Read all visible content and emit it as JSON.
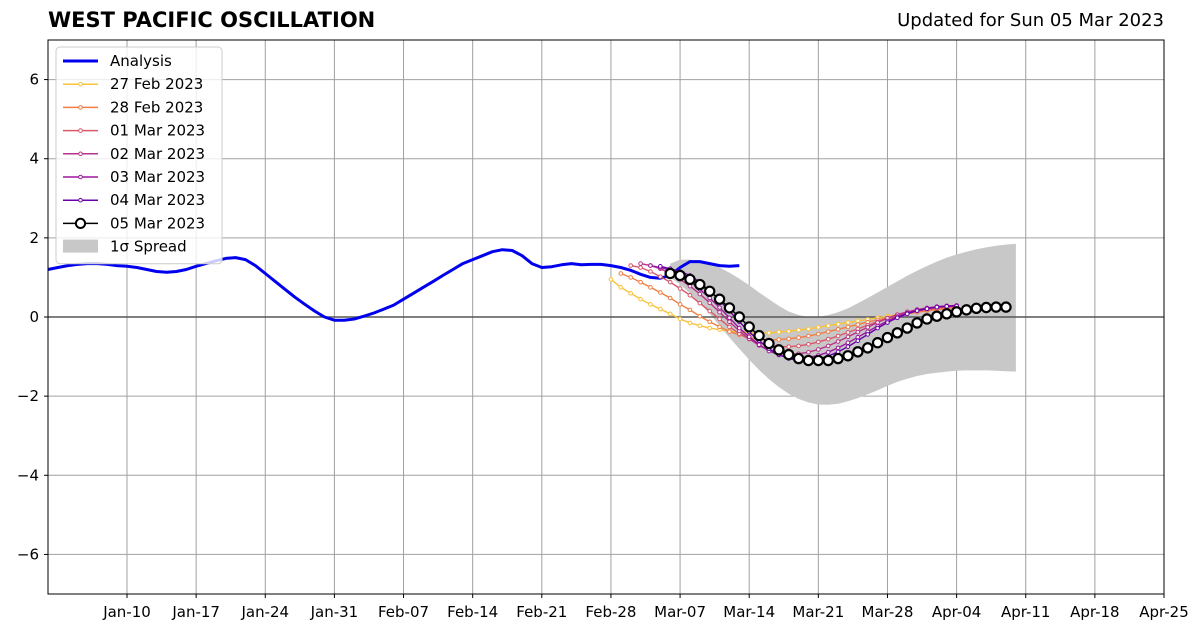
{
  "header": {
    "title": "WEST PACIFIC OSCILLATION",
    "updated": "Updated for Sun 05 Mar 2023"
  },
  "chart_data": {
    "type": "line",
    "title": "WEST PACIFIC OSCILLATION",
    "subtitle": "Updated for Sun 05 Mar 2023",
    "x_unit": "day",
    "xlim": [
      "2023-01-02",
      "2023-04-25"
    ],
    "ylim": [
      -7,
      7
    ],
    "x_ticks": [
      {
        "date": "2023-01-10",
        "label": "Jan-10"
      },
      {
        "date": "2023-01-17",
        "label": "Jan-17"
      },
      {
        "date": "2023-01-24",
        "label": "Jan-24"
      },
      {
        "date": "2023-01-31",
        "label": "Jan-31"
      },
      {
        "date": "2023-02-07",
        "label": "Feb-07"
      },
      {
        "date": "2023-02-14",
        "label": "Feb-14"
      },
      {
        "date": "2023-02-21",
        "label": "Feb-21"
      },
      {
        "date": "2023-02-28",
        "label": "Feb-28"
      },
      {
        "date": "2023-03-07",
        "label": "Mar-07"
      },
      {
        "date": "2023-03-14",
        "label": "Mar-14"
      },
      {
        "date": "2023-03-21",
        "label": "Mar-21"
      },
      {
        "date": "2023-03-28",
        "label": "Mar-28"
      },
      {
        "date": "2023-04-04",
        "label": "Apr-04"
      },
      {
        "date": "2023-04-11",
        "label": "Apr-11"
      },
      {
        "date": "2023-04-18",
        "label": "Apr-18"
      },
      {
        "date": "2023-04-25",
        "label": "Apr-25"
      }
    ],
    "y_ticks": [
      {
        "value": 6,
        "label": "6"
      },
      {
        "value": 4,
        "label": "4"
      },
      {
        "value": 2,
        "label": "2"
      },
      {
        "value": 0,
        "label": "0"
      },
      {
        "value": -2,
        "label": "−2"
      },
      {
        "value": -4,
        "label": "−4"
      },
      {
        "value": -6,
        "label": "−6"
      }
    ],
    "grid": true,
    "legend_position": "top-left",
    "analysis": {
      "name": "Analysis",
      "color": "#0000ee",
      "start_date": "2023-01-02",
      "values": [
        1.2,
        1.25,
        1.3,
        1.33,
        1.35,
        1.35,
        1.33,
        1.3,
        1.28,
        1.25,
        1.2,
        1.15,
        1.13,
        1.15,
        1.2,
        1.28,
        1.35,
        1.42,
        1.48,
        1.5,
        1.45,
        1.3,
        1.1,
        0.9,
        0.7,
        0.5,
        0.32,
        0.15,
        0.0,
        -0.08,
        -0.08,
        -0.05,
        0.02,
        0.1,
        0.2,
        0.3,
        0.45,
        0.6,
        0.75,
        0.9,
        1.05,
        1.2,
        1.35,
        1.45,
        1.55,
        1.65,
        1.7,
        1.68,
        1.55,
        1.35,
        1.25,
        1.27,
        1.32,
        1.35,
        1.32,
        1.33,
        1.33,
        1.3,
        1.25,
        1.18,
        1.08,
        1.0,
        0.98,
        1.05,
        1.25,
        1.4,
        1.4,
        1.35,
        1.3,
        1.28,
        1.3
      ]
    },
    "forecasts": [
      {
        "name": "27 Feb 2023",
        "color": "#f9c33b",
        "start_date": "2023-02-28",
        "values": [
          0.95,
          0.75,
          0.6,
          0.45,
          0.32,
          0.2,
          0.08,
          -0.05,
          -0.15,
          -0.22,
          -0.28,
          -0.32,
          -0.36,
          -0.38,
          -0.4,
          -0.4,
          -0.4,
          -0.38,
          -0.36,
          -0.33,
          -0.3,
          -0.26,
          -0.22,
          -0.18,
          -0.14,
          -0.1,
          -0.06,
          -0.02,
          0.02,
          0.06,
          0.1,
          0.13,
          0.16,
          0.19,
          0.21,
          0.23
        ]
      },
      {
        "name": "28 Feb 2023",
        "color": "#f07e45",
        "start_date": "2023-03-01",
        "values": [
          1.1,
          1.0,
          0.88,
          0.75,
          0.62,
          0.48,
          0.32,
          0.18,
          0.02,
          -0.12,
          -0.25,
          -0.37,
          -0.45,
          -0.52,
          -0.56,
          -0.58,
          -0.57,
          -0.55,
          -0.52,
          -0.48,
          -0.43,
          -0.37,
          -0.31,
          -0.25,
          -0.19,
          -0.13,
          -0.07,
          -0.02,
          0.03,
          0.08,
          0.12,
          0.16,
          0.19,
          0.22,
          0.24
        ]
      },
      {
        "name": "01 Mar 2023",
        "color": "#d8576b",
        "start_date": "2023-03-02",
        "values": [
          1.3,
          1.25,
          1.15,
          1.02,
          0.88,
          0.72,
          0.55,
          0.35,
          0.15,
          -0.05,
          -0.25,
          -0.42,
          -0.56,
          -0.66,
          -0.72,
          -0.75,
          -0.75,
          -0.73,
          -0.69,
          -0.63,
          -0.56,
          -0.48,
          -0.39,
          -0.3,
          -0.21,
          -0.12,
          -0.04,
          0.03,
          0.1,
          0.15,
          0.19,
          0.22,
          0.25,
          0.27
        ]
      },
      {
        "name": "02 Mar 2023",
        "color": "#b93289",
        "start_date": "2023-03-03",
        "values": [
          1.35,
          1.3,
          1.22,
          1.1,
          0.95,
          0.78,
          0.58,
          0.36,
          0.12,
          -0.12,
          -0.35,
          -0.55,
          -0.72,
          -0.84,
          -0.91,
          -0.94,
          -0.93,
          -0.89,
          -0.82,
          -0.73,
          -0.62,
          -0.5,
          -0.38,
          -0.26,
          -0.14,
          -0.03,
          0.06,
          0.13,
          0.19,
          0.23,
          0.26,
          0.28,
          0.29
        ]
      },
      {
        "name": "03 Mar 2023",
        "color": "#9c179e",
        "start_date": "2023-03-04",
        "values": [
          1.3,
          1.25,
          1.18,
          1.06,
          0.9,
          0.7,
          0.48,
          0.24,
          -0.02,
          -0.28,
          -0.5,
          -0.7,
          -0.86,
          -0.96,
          -1.02,
          -1.04,
          -1.02,
          -0.97,
          -0.89,
          -0.78,
          -0.65,
          -0.51,
          -0.37,
          -0.23,
          -0.1,
          0.01,
          0.1,
          0.17,
          0.22,
          0.26,
          0.28,
          0.29
        ]
      },
      {
        "name": "04 Mar 2023",
        "color": "#6a00a8",
        "start_date": "2023-03-05",
        "values": [
          1.28,
          1.22,
          1.15,
          1.05,
          0.88,
          0.66,
          0.42,
          0.15,
          -0.12,
          -0.38,
          -0.6,
          -0.8,
          -0.95,
          -1.05,
          -1.1,
          -1.1,
          -1.06,
          -0.99,
          -0.88,
          -0.75,
          -0.6,
          -0.44,
          -0.28,
          -0.14,
          -0.02,
          0.08,
          0.16,
          0.21,
          0.25,
          0.27,
          0.28
        ]
      },
      {
        "name": "05 Mar 2023",
        "color": "#000000",
        "start_date": "2023-03-06",
        "values": [
          1.1,
          1.05,
          0.95,
          0.82,
          0.65,
          0.45,
          0.23,
          0.0,
          -0.25,
          -0.47,
          -0.67,
          -0.83,
          -0.95,
          -1.05,
          -1.1,
          -1.1,
          -1.1,
          -1.05,
          -0.98,
          -0.88,
          -0.78,
          -0.65,
          -0.52,
          -0.4,
          -0.28,
          -0.15,
          -0.05,
          0.02,
          0.08,
          0.13,
          0.18,
          0.22,
          0.24,
          0.25,
          0.25
        ]
      }
    ],
    "spread": {
      "name": "1σ Spread",
      "color": "#c8c8c8",
      "start_date": "2023-03-06",
      "upper": [
        1.35,
        1.45,
        1.45,
        1.42,
        1.35,
        1.25,
        1.12,
        0.97,
        0.8,
        0.62,
        0.45,
        0.28,
        0.14,
        0.05,
        0.0,
        0.0,
        0.05,
        0.12,
        0.22,
        0.35,
        0.48,
        0.62,
        0.76,
        0.9,
        1.04,
        1.17,
        1.29,
        1.4,
        1.5,
        1.58,
        1.65,
        1.71,
        1.76,
        1.8,
        1.83,
        1.85
      ],
      "lower": [
        1.0,
        0.82,
        0.6,
        0.35,
        0.08,
        -0.22,
        -0.52,
        -0.8,
        -1.08,
        -1.34,
        -1.57,
        -1.77,
        -1.94,
        -2.07,
        -2.16,
        -2.21,
        -2.22,
        -2.19,
        -2.13,
        -2.05,
        -1.95,
        -1.85,
        -1.74,
        -1.64,
        -1.56,
        -1.49,
        -1.44,
        -1.41,
        -1.38,
        -1.36,
        -1.35,
        -1.35,
        -1.35,
        -1.36,
        -1.37,
        -1.38
      ]
    }
  }
}
